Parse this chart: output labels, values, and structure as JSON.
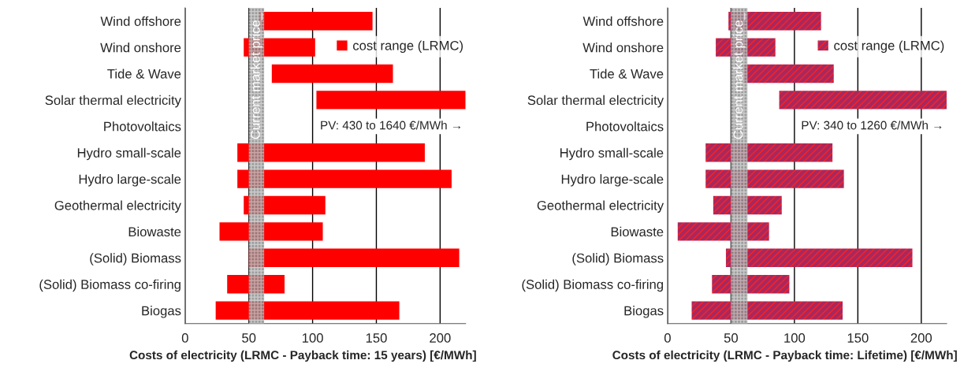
{
  "chart_data": [
    {
      "type": "bar",
      "orientation": "horizontal",
      "categories": [
        "Wind offshore",
        "Wind onshore",
        "Tide & Wave",
        "Solar thermal electricity",
        "Photovoltaics",
        "Hydro small-scale",
        "Hydro large-scale",
        "Geothermal electricity",
        "Biowaste",
        "(Solid) Biomass",
        "(Solid) Biomass co-firing",
        "Biogas"
      ],
      "series": [
        {
          "name": "cost range (LRMC)",
          "color": "#ff0000",
          "base": [
            58,
            46,
            68,
            103,
            null,
            41,
            41,
            46,
            27,
            50,
            33,
            24
          ],
          "values": [
            89,
            56,
            95,
            117,
            null,
            147,
            168,
            64,
            81,
            165,
            45,
            144
          ]
        }
      ],
      "xlim": [
        0,
        220
      ],
      "xticks": [
        0,
        50,
        100,
        150,
        200
      ],
      "grid": "x",
      "legend": "top right",
      "xlabel": "Costs of electricity (LRMC - Payback time: 15 years) [€/MWh]",
      "bands": [
        {
          "axis": "x",
          "from": 50,
          "to": 62,
          "label": "Current market price_",
          "color": "#8c8c8c"
        }
      ],
      "annotations": [
        "PV: 430 to 1640 €/MWh →"
      ]
    },
    {
      "type": "bar",
      "orientation": "horizontal",
      "categories": [
        "Wind offshore",
        "Wind onshore",
        "Tide & Wave",
        "Solar thermal electricity",
        "Photovoltaics",
        "Hydro small-scale",
        "Hydro large-scale",
        "Geothermal electricity",
        "Biowaste",
        "(Solid) Biomass",
        "(Solid) Biomass co-firing",
        "Biogas"
      ],
      "series": [
        {
          "name": "cost range (LRMC)",
          "color": "#a8285e",
          "base": [
            48,
            38,
            60,
            88,
            null,
            30,
            30,
            36,
            8,
            46,
            35,
            19
          ],
          "values": [
            73,
            47,
            71,
            132,
            null,
            100,
            109,
            54,
            72,
            147,
            61,
            119
          ]
        }
      ],
      "xlim": [
        0,
        220
      ],
      "xticks": [
        0,
        50,
        100,
        150,
        200
      ],
      "grid": "x",
      "legend": "top right",
      "xlabel": "Costs of electricity (LRMC - Payback time: Lifetime) [€/MWh]",
      "bands": [
        {
          "axis": "x",
          "from": 50,
          "to": 63,
          "label": "Current market price_",
          "color": "#8c8c8c"
        }
      ],
      "annotations": [
        "PV: 340 to 1260 €/MWh →"
      ]
    }
  ]
}
